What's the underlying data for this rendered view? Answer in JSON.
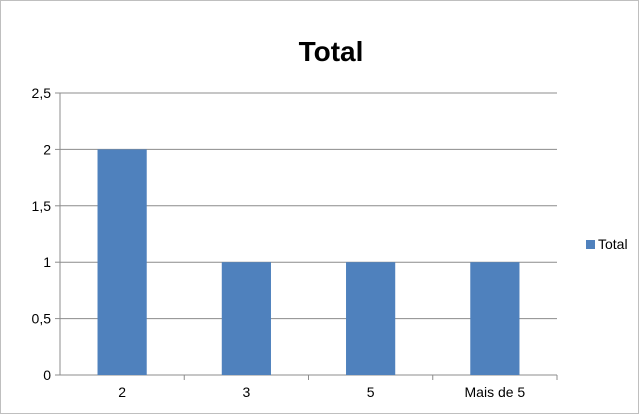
{
  "chart_data": {
    "type": "bar",
    "title": "Total",
    "categories": [
      "2",
      "3",
      "5",
      "Mais de 5"
    ],
    "series": [
      {
        "name": "Total",
        "values": [
          2,
          1,
          1,
          1
        ],
        "color": "#4f81bd"
      }
    ],
    "ylim": [
      0,
      2.5
    ],
    "yticks": [
      "0",
      "0,5",
      "1",
      "1,5",
      "2",
      "2,5"
    ],
    "grid": true,
    "legend": "right"
  }
}
